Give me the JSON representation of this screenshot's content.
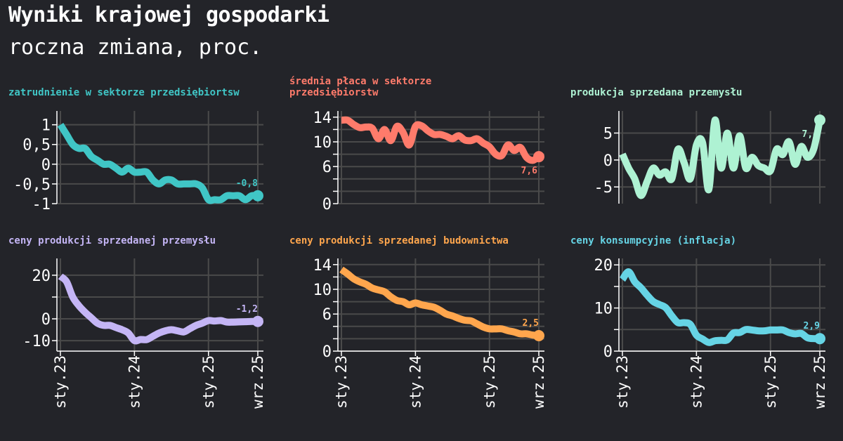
{
  "title": "Wyniki krajowej gospodarki",
  "subtitle": "roczna zmiana, proc.",
  "chart_data": {
    "type": "line",
    "x": [
      "2023-01",
      "2023-02",
      "2023-03",
      "2023-04",
      "2023-05",
      "2023-06",
      "2023-07",
      "2023-08",
      "2023-09",
      "2023-10",
      "2023-11",
      "2023-12",
      "2024-01",
      "2024-02",
      "2024-03",
      "2024-04",
      "2024-05",
      "2024-06",
      "2024-07",
      "2024-08",
      "2024-09",
      "2024-10",
      "2024-11",
      "2024-12",
      "2025-01",
      "2025-02",
      "2025-03",
      "2025-04",
      "2025-05",
      "2025-06",
      "2025-07",
      "2025-08",
      "2025-09"
    ],
    "x_ticks": [
      {
        "x": "2023-01",
        "label": "sty.23"
      },
      {
        "x": "2024-01",
        "label": "sty.24"
      },
      {
        "x": "2025-01",
        "label": "sty.25"
      },
      {
        "x": "2025-09",
        "label": "wrz.25"
      }
    ],
    "grid": true,
    "panels": [
      {
        "title": [
          "zatrudnienie w sektorze przedsiębiortsw"
        ],
        "color": "#40c6c6",
        "ylim": [
          -1,
          1.35
        ],
        "yticks": [
          {
            "v": 1,
            "label": "1"
          },
          {
            "v": 0.5,
            "label": "0,5"
          },
          {
            "v": 0,
            "label": "0"
          },
          {
            "v": -0.5,
            "label": "-0,5"
          },
          {
            "v": -1,
            "label": "-1"
          }
        ],
        "values": [
          1.0,
          0.75,
          0.5,
          0.4,
          0.4,
          0.2,
          0.1,
          0.0,
          0.0,
          -0.1,
          -0.2,
          -0.1,
          -0.2,
          -0.2,
          -0.2,
          -0.4,
          -0.5,
          -0.4,
          -0.4,
          -0.5,
          -0.5,
          -0.5,
          -0.5,
          -0.6,
          -0.9,
          -0.9,
          -0.9,
          -0.8,
          -0.8,
          -0.8,
          -0.9,
          -0.8,
          -0.8
        ],
        "last_label": "-0,8",
        "label_position": "above"
      },
      {
        "title": [
          "średnia płaca w sektorze",
          "przedsiębiorstw"
        ],
        "color": "#ff7b6b",
        "ylim": [
          0,
          15
        ],
        "yticks": [
          {
            "v": 0,
            "label": "0"
          },
          {
            "v": 2,
            "label": ""
          },
          {
            "v": 4,
            "label": ""
          },
          {
            "v": 6,
            "label": "6"
          },
          {
            "v": 8,
            "label": ""
          },
          {
            "v": 10,
            "label": "10"
          },
          {
            "v": 12,
            "label": ""
          },
          {
            "v": 14,
            "label": "14"
          }
        ],
        "values": [
          13.5,
          13.5,
          12.8,
          12.3,
          12.4,
          12.2,
          10.5,
          12.0,
          10.2,
          12.5,
          11.5,
          9.5,
          12.5,
          12.6,
          11.8,
          11.2,
          11.2,
          10.9,
          10.5,
          11.0,
          10.3,
          10.2,
          10.5,
          9.8,
          9.2,
          8.0,
          7.8,
          9.5,
          8.6,
          9.1,
          7.5,
          7.0,
          7.6
        ],
        "last_label": "7,6",
        "label_position": "below"
      },
      {
        "title": [
          "produkcja sprzedana przemysłu"
        ],
        "color": "#aef2d3",
        "ylim": [
          -8.1,
          9.1
        ],
        "yticks": [
          {
            "v": -5,
            "label": "-5"
          },
          {
            "v": 0,
            "label": "0"
          },
          {
            "v": 5,
            "label": "5"
          }
        ],
        "values": [
          1.1,
          -1.5,
          -3.5,
          -6.6,
          -4.0,
          -1.5,
          -2.8,
          -2.2,
          -3.5,
          2.0,
          -0.5,
          -3.5,
          2.8,
          3.2,
          -5.5,
          7.4,
          -1.5,
          5.0,
          -1.5,
          4.5,
          -1.5,
          0.5,
          -1.0,
          -1.5,
          -2.0,
          2.0,
          1.0,
          3.4,
          -0.8,
          2.5,
          0.5,
          2.0,
          7.4
        ],
        "last_label": "7,4",
        "label_position": "below"
      },
      {
        "title": [
          "ceny produkcji sprzedanej przemysłu"
        ],
        "color": "#c4b5f5",
        "ylim": [
          -14.8,
          27.7
        ],
        "yticks": [
          {
            "v": -10,
            "label": "-10"
          },
          {
            "v": 0,
            "label": "0"
          },
          {
            "v": 10,
            "label": ""
          },
          {
            "v": 20,
            "label": "20"
          }
        ],
        "values": [
          19.5,
          17,
          10,
          6,
          3,
          0.5,
          -2,
          -3,
          -3,
          -4,
          -5,
          -6.5,
          -10,
          -9.5,
          -9.5,
          -8,
          -6.5,
          -5.5,
          -5,
          -5.5,
          -6,
          -4.5,
          -3,
          -2,
          -0.8,
          -1,
          -0.8,
          -1.5,
          -1.5,
          -1.4,
          -1.3,
          -1.2,
          -1.2
        ],
        "last_label": "-1,2",
        "label_position": "above"
      },
      {
        "title": [
          "ceny produkcji sprzedanej budownictwa"
        ],
        "color": "#ffa64d",
        "ylim": [
          0,
          15
        ],
        "yticks": [
          {
            "v": 0,
            "label": "0"
          },
          {
            "v": 2,
            "label": ""
          },
          {
            "v": 4,
            "label": ""
          },
          {
            "v": 6,
            "label": "6"
          },
          {
            "v": 8,
            "label": ""
          },
          {
            "v": 10,
            "label": "10"
          },
          {
            "v": 12,
            "label": ""
          },
          {
            "v": 14,
            "label": "14"
          }
        ],
        "values": [
          13.2,
          12.5,
          11.7,
          11.2,
          10.8,
          10.2,
          9.9,
          9.6,
          8.8,
          8.2,
          8.0,
          7.5,
          7.8,
          7.5,
          7.3,
          7.1,
          6.6,
          6.0,
          5.7,
          5.3,
          5.0,
          4.9,
          4.4,
          3.9,
          3.6,
          3.6,
          3.6,
          3.3,
          3.1,
          2.8,
          2.8,
          2.6,
          2.5
        ],
        "last_label": "2,5",
        "label_position": "above"
      },
      {
        "title": [
          "ceny konsumpcyjne (inflacja)"
        ],
        "color": "#66d4e5",
        "ylim": [
          0,
          21.5
        ],
        "yticks": [
          {
            "v": 0,
            "label": "0"
          },
          {
            "v": 5,
            "label": ""
          },
          {
            "v": 10,
            "label": "10"
          },
          {
            "v": 15,
            "label": ""
          },
          {
            "v": 20,
            "label": "20"
          }
        ],
        "values": [
          16.6,
          18.4,
          16.1,
          14.7,
          13.0,
          11.5,
          10.8,
          10.1,
          8.2,
          6.6,
          6.6,
          6.2,
          3.7,
          2.8,
          2.0,
          2.4,
          2.5,
          2.6,
          4.2,
          4.3,
          5.0,
          4.9,
          4.7,
          4.7,
          4.9,
          4.9,
          4.9,
          4.3,
          4.0,
          4.1,
          3.1,
          2.9,
          2.9
        ],
        "last_label": "2,9",
        "label_position": "above"
      }
    ]
  }
}
